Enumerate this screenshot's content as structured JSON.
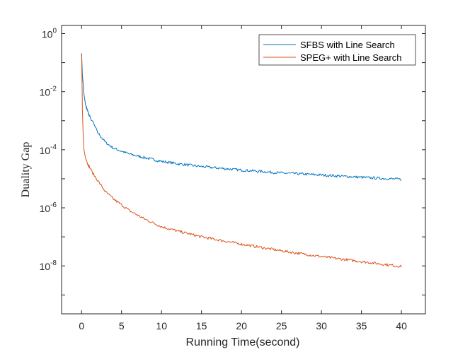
{
  "chart_data": {
    "type": "line",
    "title": "",
    "xlabel": "Running Time(second)",
    "ylabel": "Duality Gap",
    "xlim": [
      -2.5,
      43
    ],
    "ylim_log10": [
      -9.65,
      0.28
    ],
    "y_scale": "log",
    "x_ticks": [
      0,
      5,
      10,
      15,
      20,
      25,
      30,
      35,
      40
    ],
    "y_ticks": [
      {
        "exp": 0,
        "base": "10",
        "sup": "0"
      },
      {
        "exp": -2,
        "base": "10",
        "sup": "-2"
      },
      {
        "exp": -4,
        "base": "10",
        "sup": "-4"
      },
      {
        "exp": -6,
        "base": "10",
        "sup": "-6"
      },
      {
        "exp": -8,
        "base": "10",
        "sup": "-8"
      }
    ],
    "legend_position": "top-right",
    "series": [
      {
        "name": "SFBS with Line Search",
        "color": "#0072BD",
        "x": [
          0,
          0.1,
          0.3,
          0.5,
          0.8,
          1.0,
          1.5,
          2,
          3,
          4,
          5,
          6,
          8,
          10,
          12,
          15,
          20,
          25,
          30,
          35,
          40
        ],
        "log10": [
          -0.68,
          -1.4,
          -2.1,
          -2.45,
          -2.7,
          -2.85,
          -3.1,
          -3.4,
          -3.75,
          -3.95,
          -4.05,
          -4.15,
          -4.28,
          -4.4,
          -4.48,
          -4.58,
          -4.7,
          -4.8,
          -4.87,
          -4.95,
          -5.02
        ],
        "noise": 0.045
      },
      {
        "name": "SPEG+ with Line Search",
        "color": "#D95319",
        "x": [
          0,
          0.05,
          0.1,
          0.2,
          0.3,
          0.5,
          0.8,
          1.0,
          1.5,
          2,
          3,
          4,
          5,
          6,
          8,
          10,
          12,
          15,
          20,
          25,
          30,
          35,
          40
        ],
        "log10": [
          -0.68,
          -1.5,
          -2.6,
          -3.5,
          -4.0,
          -4.3,
          -4.5,
          -4.6,
          -4.85,
          -5.05,
          -5.45,
          -5.7,
          -5.9,
          -6.1,
          -6.4,
          -6.65,
          -6.8,
          -7.0,
          -7.25,
          -7.48,
          -7.68,
          -7.85,
          -8.02
        ],
        "noise": 0.045
      }
    ]
  }
}
